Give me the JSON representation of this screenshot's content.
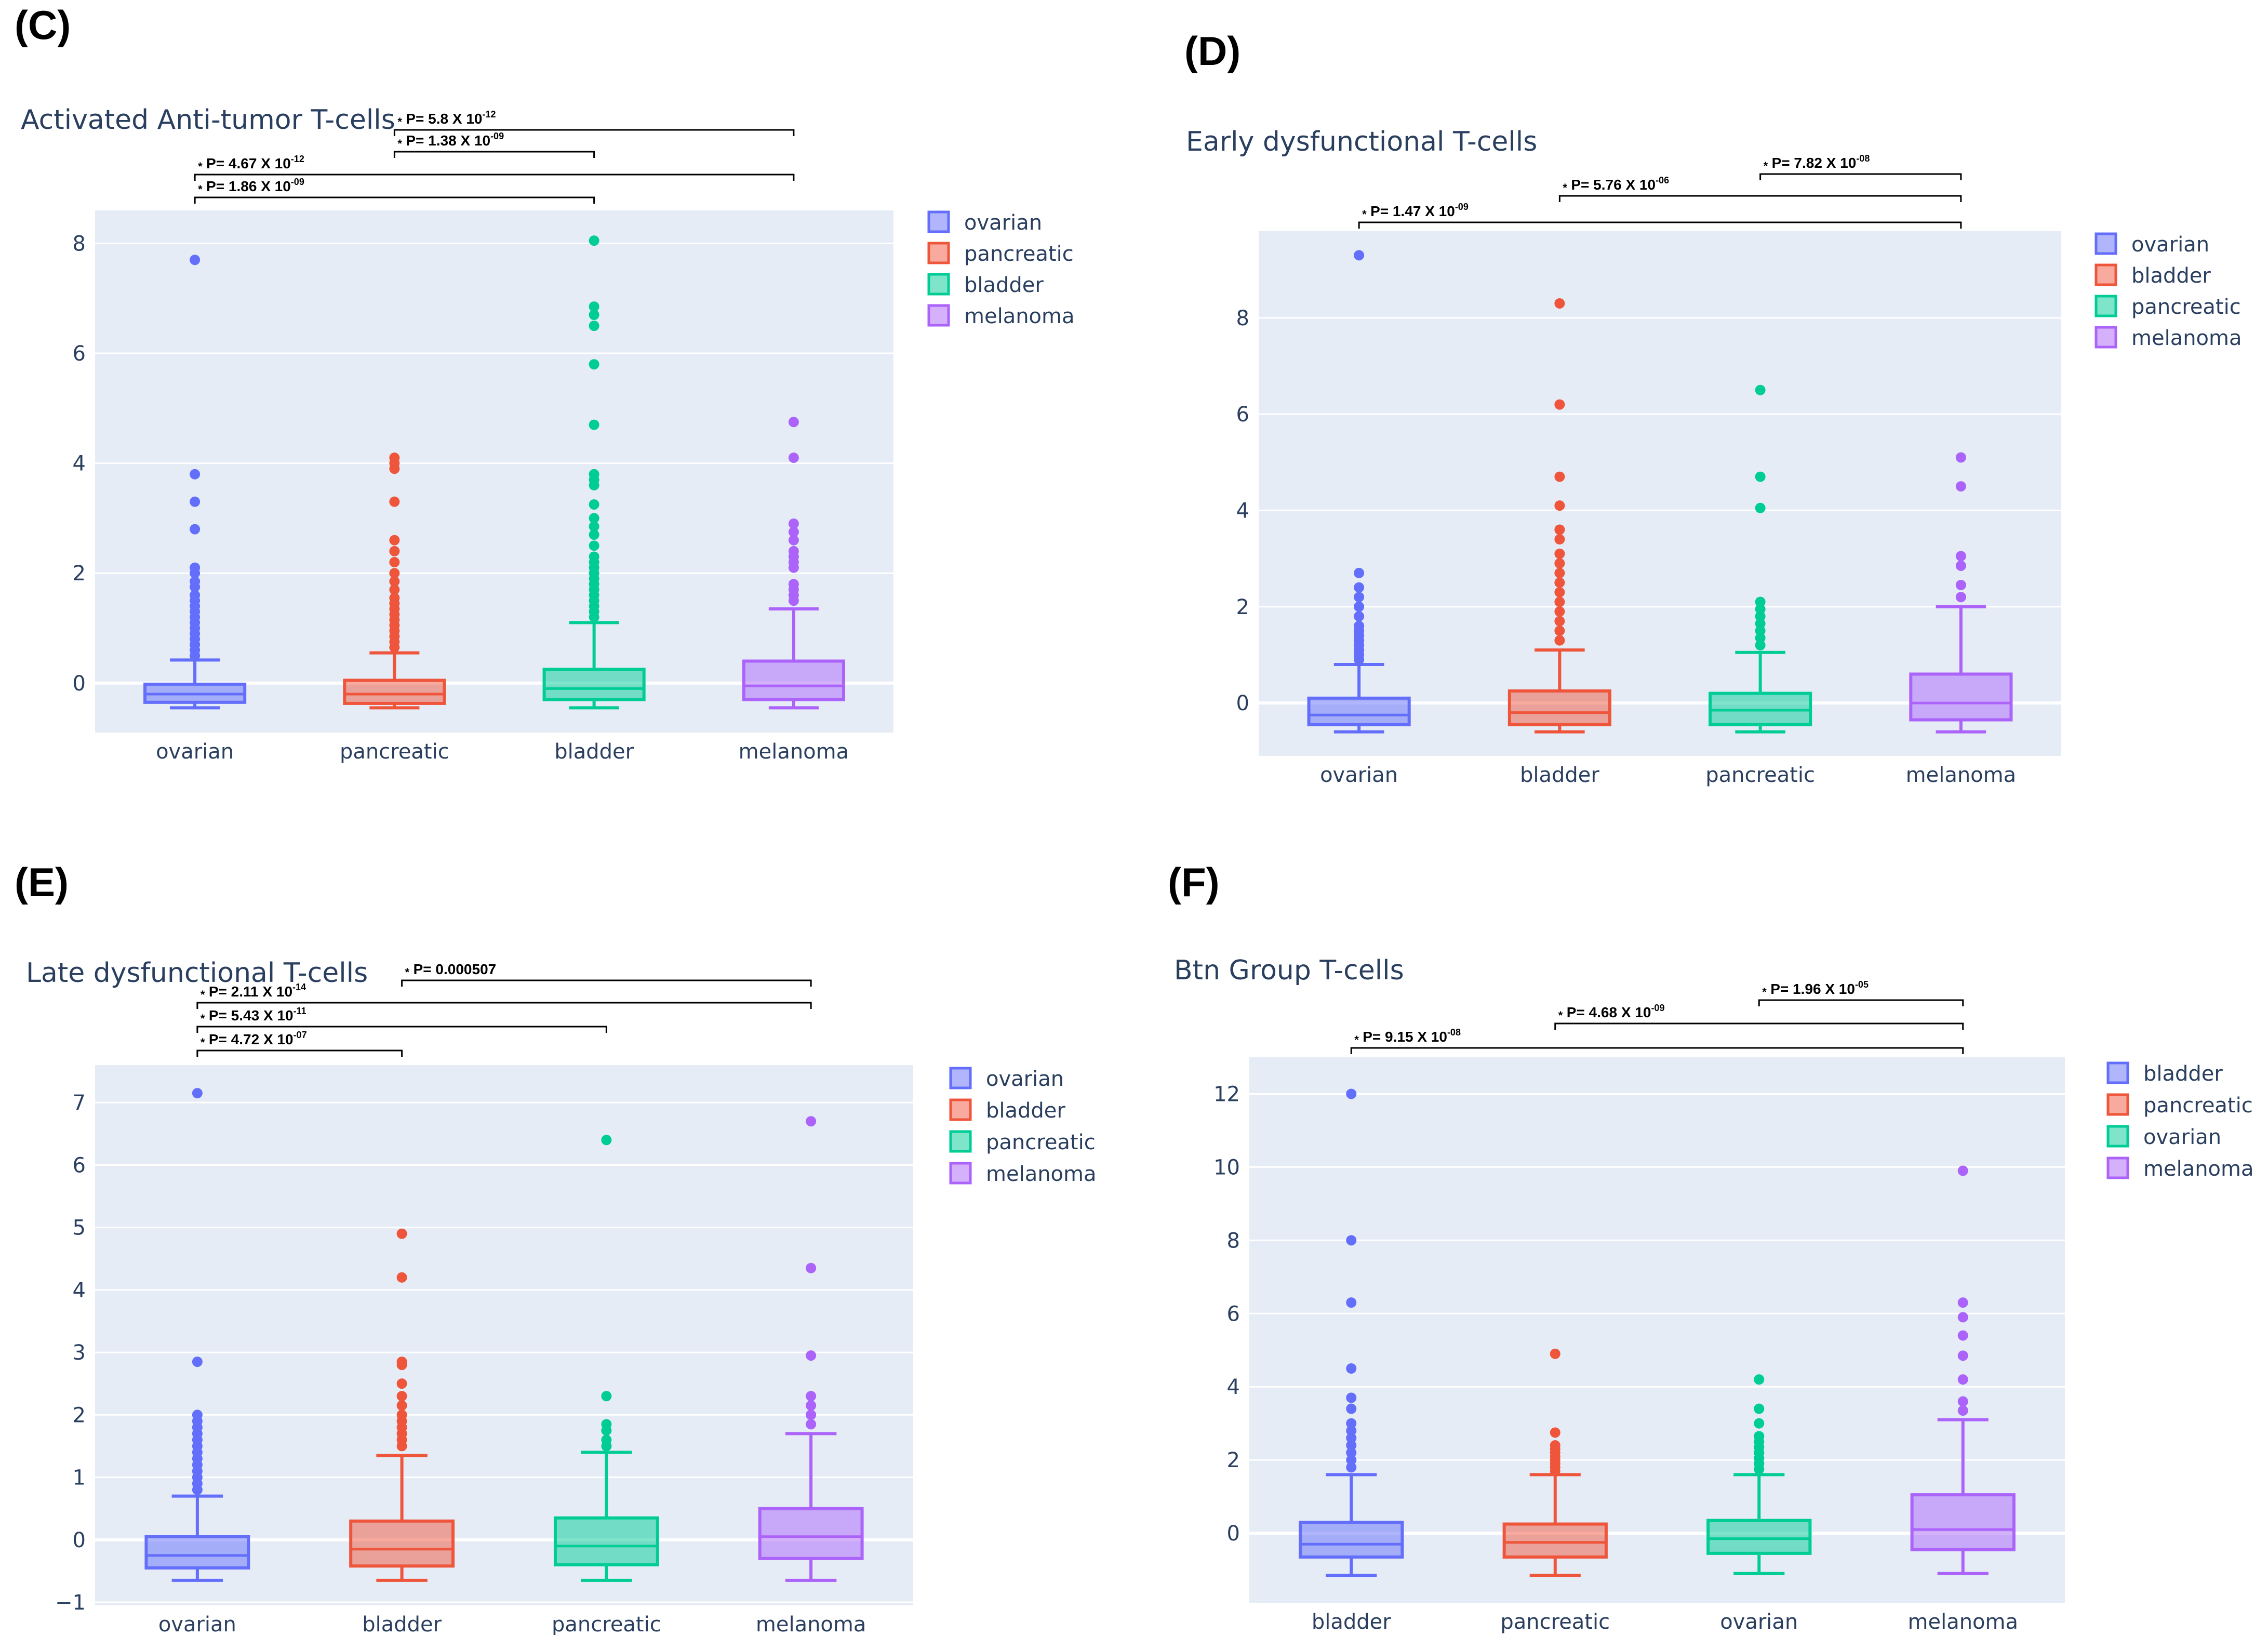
{
  "colors": {
    "ovarian": "#636efa",
    "pancreatic": "#ef553b",
    "bladder": "#00cc96",
    "melanoma": "#ab63fa",
    "plot_bg": "#e5ecf6",
    "text": "#2a3f5f"
  },
  "chart_data": [
    {
      "panel": "(C)",
      "type": "box",
      "title": "Activated Anti-tumor T-cells",
      "ylim": [
        -0.9,
        8.6
      ],
      "yticks": [
        0,
        2,
        4,
        6,
        8
      ],
      "ytick_labels": [
        "0",
        "2",
        "4",
        "6",
        "8"
      ],
      "categories": [
        "ovarian",
        "pancreatic",
        "bladder",
        "melanoma"
      ],
      "legend": [
        "ovarian",
        "pancreatic",
        "bladder",
        "melanoma"
      ],
      "boxes": [
        {
          "name": "ovarian",
          "color": "#636efa",
          "min": -0.45,
          "q1": -0.35,
          "median": -0.2,
          "q3": -0.02,
          "max": 0.42,
          "outliers": [
            0.5,
            0.6,
            0.7,
            0.8,
            0.9,
            1.0,
            1.1,
            1.2,
            1.3,
            1.4,
            1.5,
            1.6,
            1.75,
            1.85,
            2.0,
            2.1,
            2.8,
            3.3,
            3.8,
            7.7
          ]
        },
        {
          "name": "pancreatic",
          "color": "#ef553b",
          "min": -0.45,
          "q1": -0.37,
          "median": -0.2,
          "q3": 0.05,
          "max": 0.55,
          "outliers": [
            0.65,
            0.75,
            0.85,
            0.95,
            1.05,
            1.15,
            1.25,
            1.35,
            1.45,
            1.55,
            1.7,
            1.85,
            2.0,
            2.2,
            2.4,
            2.6,
            3.3,
            3.9,
            4.0,
            4.1
          ]
        },
        {
          "name": "bladder",
          "color": "#00cc96",
          "min": -0.45,
          "q1": -0.3,
          "median": -0.1,
          "q3": 0.25,
          "max": 1.1,
          "outliers": [
            1.2,
            1.3,
            1.4,
            1.5,
            1.6,
            1.7,
            1.8,
            1.9,
            2.0,
            2.1,
            2.2,
            2.3,
            2.5,
            2.7,
            2.85,
            3.0,
            3.25,
            3.6,
            3.7,
            3.8,
            4.7,
            5.8,
            6.5,
            6.7,
            6.85,
            8.05
          ]
        },
        {
          "name": "melanoma",
          "color": "#ab63fa",
          "min": -0.45,
          "q1": -0.3,
          "median": -0.05,
          "q3": 0.4,
          "max": 1.35,
          "outliers": [
            1.5,
            1.6,
            1.7,
            1.8,
            2.1,
            2.2,
            2.3,
            2.4,
            2.6,
            2.75,
            2.9,
            4.1,
            4.75
          ]
        }
      ],
      "annotations": [
        {
          "text": "P= 5.8 X 10",
          "exp": "-12",
          "from": 1,
          "to": 3
        },
        {
          "text": "P= 1.38 X 10",
          "exp": "-09",
          "from": 1,
          "to": 2
        },
        {
          "text": "P= 4.67 X 10",
          "exp": "-12",
          "from": 0,
          "to": 3
        },
        {
          "text": "P= 1.86 X 10",
          "exp": "-09",
          "from": 0,
          "to": 2
        }
      ]
    },
    {
      "panel": "(D)",
      "type": "box",
      "title": "Early dysfunctional T-cells",
      "ylim": [
        -1.1,
        9.8
      ],
      "yticks": [
        0,
        2,
        4,
        6,
        8
      ],
      "ytick_labels": [
        "0",
        "2",
        "4",
        "6",
        "8"
      ],
      "categories": [
        "ovarian",
        "bladder",
        "pancreatic",
        "melanoma"
      ],
      "legend": [
        "ovarian",
        "bladder",
        "pancreatic",
        "melanoma"
      ],
      "boxes": [
        {
          "name": "ovarian",
          "color": "#636efa",
          "min": -0.6,
          "q1": -0.45,
          "median": -0.25,
          "q3": 0.1,
          "max": 0.8,
          "outliers": [
            0.9,
            1.0,
            1.1,
            1.2,
            1.3,
            1.4,
            1.5,
            1.6,
            1.8,
            2.0,
            2.2,
            2.4,
            2.7,
            9.3
          ]
        },
        {
          "name": "bladder",
          "color": "#ef553b",
          "min": -0.6,
          "q1": -0.45,
          "median": -0.2,
          "q3": 0.25,
          "max": 1.1,
          "outliers": [
            1.3,
            1.5,
            1.7,
            1.9,
            2.1,
            2.3,
            2.5,
            2.7,
            2.9,
            3.1,
            3.4,
            3.6,
            4.1,
            4.7,
            6.2,
            8.3
          ]
        },
        {
          "name": "pancreatic",
          "color": "#00cc96",
          "min": -0.6,
          "q1": -0.45,
          "median": -0.15,
          "q3": 0.2,
          "max": 1.05,
          "outliers": [
            1.2,
            1.35,
            1.5,
            1.65,
            1.8,
            1.95,
            2.1,
            4.05,
            4.7,
            6.5
          ]
        },
        {
          "name": "melanoma",
          "color": "#ab63fa",
          "min": -0.6,
          "q1": -0.35,
          "median": 0.0,
          "q3": 0.6,
          "max": 2.0,
          "outliers": [
            2.2,
            2.45,
            2.85,
            3.05,
            4.5,
            5.1
          ]
        }
      ],
      "annotations": [
        {
          "text": "P= 7.82 X 10",
          "exp": "-08",
          "from": 2,
          "to": 3
        },
        {
          "text": "P= 5.76 X 10",
          "exp": "-06",
          "from": 1,
          "to": 3
        },
        {
          "text": "P= 1.47 X 10",
          "exp": "-09",
          "from": 0,
          "to": 3
        }
      ]
    },
    {
      "panel": "(E)",
      "type": "box",
      "title": "Late dysfunctional T-cells",
      "ylim": [
        -1.05,
        7.6
      ],
      "yticks": [
        -1,
        0,
        1,
        2,
        3,
        4,
        5,
        6,
        7
      ],
      "ytick_labels": [
        "−1",
        "0",
        "1",
        "2",
        "3",
        "4",
        "5",
        "6",
        "7"
      ],
      "categories": [
        "ovarian",
        "bladder",
        "pancreatic",
        "melanoma"
      ],
      "legend": [
        "ovarian",
        "bladder",
        "pancreatic",
        "melanoma"
      ],
      "boxes": [
        {
          "name": "ovarian",
          "color": "#636efa",
          "min": -0.65,
          "q1": -0.45,
          "median": -0.25,
          "q3": 0.05,
          "max": 0.7,
          "outliers": [
            0.8,
            0.9,
            1.0,
            1.1,
            1.2,
            1.3,
            1.4,
            1.5,
            1.6,
            1.7,
            1.8,
            1.9,
            2.0,
            2.85,
            7.15
          ]
        },
        {
          "name": "bladder",
          "color": "#ef553b",
          "min": -0.65,
          "q1": -0.42,
          "median": -0.15,
          "q3": 0.3,
          "max": 1.35,
          "outliers": [
            1.5,
            1.6,
            1.7,
            1.8,
            1.9,
            2.0,
            2.15,
            2.3,
            2.5,
            2.8,
            2.85,
            4.2,
            4.9
          ]
        },
        {
          "name": "pancreatic",
          "color": "#00cc96",
          "min": -0.65,
          "q1": -0.4,
          "median": -0.1,
          "q3": 0.35,
          "max": 1.4,
          "outliers": [
            1.5,
            1.6,
            1.75,
            1.85,
            2.3,
            6.4
          ]
        },
        {
          "name": "melanoma",
          "color": "#ab63fa",
          "min": -0.65,
          "q1": -0.3,
          "median": 0.05,
          "q3": 0.5,
          "max": 1.7,
          "outliers": [
            1.85,
            2.0,
            2.15,
            2.3,
            2.95,
            4.35,
            6.7
          ]
        }
      ],
      "annotations": [
        {
          "text": "P= 0.000507",
          "exp": "",
          "from": 1,
          "to": 3
        },
        {
          "text": "P= 2.11 X 10",
          "exp": "-14",
          "from": 0,
          "to": 3
        },
        {
          "text": "P= 5.43 X 10",
          "exp": "-11",
          "from": 0,
          "to": 2
        },
        {
          "text": "P= 4.72 X 10",
          "exp": "-07",
          "from": 0,
          "to": 1
        }
      ]
    },
    {
      "panel": "(F)",
      "type": "box",
      "title": "Btn Group T-cells",
      "ylim": [
        -1.9,
        13.0
      ],
      "yticks": [
        0,
        2,
        4,
        6,
        8,
        10,
        12
      ],
      "ytick_labels": [
        "0",
        "2",
        "4",
        "6",
        "8",
        "10",
        "12"
      ],
      "categories": [
        "bladder",
        "pancreatic",
        "ovarian",
        "melanoma"
      ],
      "legend": [
        "bladder",
        "pancreatic",
        "ovarian",
        "melanoma"
      ],
      "boxes": [
        {
          "name": "bladder",
          "color": "#636efa",
          "min": -1.15,
          "q1": -0.65,
          "median": -0.3,
          "q3": 0.3,
          "max": 1.6,
          "outliers": [
            1.8,
            2.0,
            2.2,
            2.4,
            2.6,
            2.8,
            3.0,
            3.4,
            3.7,
            4.5,
            6.3,
            8.0,
            12.0
          ]
        },
        {
          "name": "pancreatic",
          "color": "#ef553b",
          "min": -1.15,
          "q1": -0.65,
          "median": -0.25,
          "q3": 0.25,
          "max": 1.6,
          "outliers": [
            1.7,
            1.8,
            1.9,
            2.0,
            2.1,
            2.2,
            2.3,
            2.4,
            2.75,
            4.9
          ]
        },
        {
          "name": "ovarian",
          "color": "#00cc96",
          "min": -1.1,
          "q1": -0.55,
          "median": -0.15,
          "q3": 0.35,
          "max": 1.6,
          "outliers": [
            1.75,
            1.9,
            2.05,
            2.2,
            2.35,
            2.5,
            2.65,
            3.0,
            3.4,
            4.2
          ]
        },
        {
          "name": "melanoma",
          "color": "#ab63fa",
          "min": -1.1,
          "q1": -0.45,
          "median": 0.1,
          "q3": 1.05,
          "max": 3.1,
          "outliers": [
            3.35,
            3.6,
            4.2,
            4.85,
            5.4,
            5.9,
            6.3,
            9.9
          ]
        }
      ],
      "annotations": [
        {
          "text": "P= 1.96 X 10",
          "exp": "-05",
          "from": 2,
          "to": 3
        },
        {
          "text": "P= 4.68 X 10",
          "exp": "-09",
          "from": 1,
          "to": 3
        },
        {
          "text": "P= 9.15 X 10",
          "exp": "-08",
          "from": 0,
          "to": 3
        }
      ]
    }
  ]
}
